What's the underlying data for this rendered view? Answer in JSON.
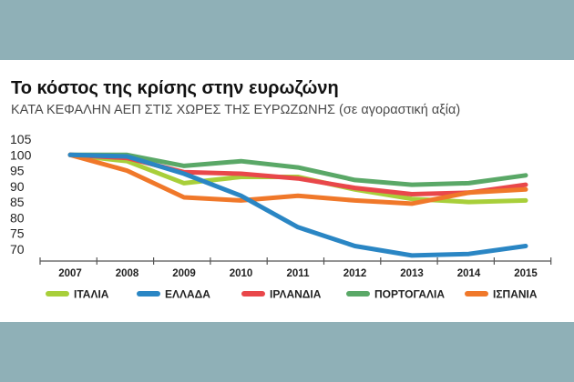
{
  "title": "Το κόστος της κρίσης στην ευρωζώνη",
  "subtitle": "ΚΑΤΑ ΚΕΦΑΛΗΝ ΑΕΠ ΣΤΙΣ ΧΩΡΕΣ ΤΗΣ ΕΥΡΩΖΩΝΗΣ (σε αγοραστική αξία)",
  "chart_data": {
    "type": "line",
    "title": "Το κόστος της κρίσης στην ευρωζώνη",
    "subtitle": "ΚΑΤΑ ΚΕΦΑΛΗΝ ΑΕΠ ΣΤΙΣ ΧΩΡΕΣ ΤΗΣ ΕΥΡΩΖΩΝΗΣ (σε αγοραστική αξία)",
    "x": [
      "2007",
      "2008",
      "2009",
      "2010",
      "2011",
      "2012",
      "2013",
      "2014",
      "2015"
    ],
    "yticks": [
      "105",
      "100",
      "95",
      "90",
      "85",
      "80",
      "75",
      "70"
    ],
    "ylim": [
      68,
      105
    ],
    "grid": false,
    "legend_position": "bottom",
    "series": [
      {
        "name": "ΙΤΑΛΙΑ",
        "color": "#a8cf3a",
        "values": [
          100,
          98,
          91,
          93,
          93,
          89,
          86,
          85,
          85.5
        ]
      },
      {
        "name": "ΕΛΛΑΔΑ",
        "color": "#2a86c4",
        "values": [
          100,
          99.5,
          94,
          87,
          77,
          71,
          68,
          68.5,
          71
        ]
      },
      {
        "name": "ΙΡΛΑΝΔΙΑ",
        "color": "#e9474a",
        "values": [
          100,
          99,
          94.5,
          94,
          92.5,
          89.5,
          87.5,
          88,
          90.5
        ]
      },
      {
        "name": "ΠΟΡΤΟΓΑΛΙΑ",
        "color": "#5aa867",
        "values": [
          100,
          100,
          96.5,
          98,
          96,
          92,
          90.5,
          91,
          93.5
        ]
      },
      {
        "name": "ΙΣΠΑΝΙΑ",
        "color": "#f0782a",
        "values": [
          100,
          95,
          86.5,
          85.5,
          87,
          85.5,
          84.5,
          88,
          89
        ]
      }
    ]
  }
}
